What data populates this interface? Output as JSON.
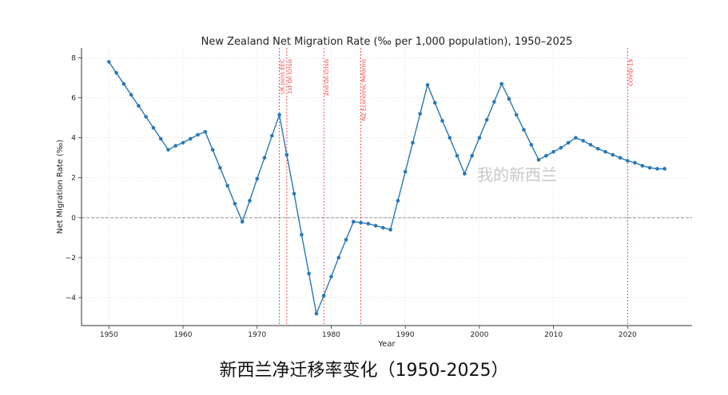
{
  "chart_data": {
    "type": "line",
    "title": "New Zealand Net Migration Rate (‰ per 1,000 population), 1950–2025",
    "xlabel": "Year",
    "ylabel": "Net Migration Rate (‰)",
    "xlim": [
      1946.3,
      2028.7
    ],
    "ylim": [
      -5.4,
      8.5
    ],
    "xticks": [
      1950,
      1960,
      1970,
      1980,
      1990,
      2000,
      2010,
      2020
    ],
    "yticks": [
      -4,
      -2,
      0,
      2,
      4,
      6,
      8
    ],
    "grid": true,
    "line_color": "#2878b8",
    "event_color": "#ff3b3b",
    "zero_line": true,
    "events": [
      {
        "year": 1973,
        "label": "UK joins EEC"
      },
      {
        "year": 1974,
        "label": "1st Oil Crisis"
      },
      {
        "year": 1979,
        "label": "2nd Oil Crisis"
      },
      {
        "year": 1984,
        "label": "NZ Economic Reforms"
      },
      {
        "year": 2020,
        "label": "COVID-19"
      }
    ],
    "x": [
      1950,
      1951,
      1952,
      1953,
      1954,
      1955,
      1956,
      1957,
      1958,
      1959,
      1960,
      1961,
      1962,
      1963,
      1964,
      1965,
      1966,
      1967,
      1968,
      1969,
      1970,
      1971,
      1972,
      1973,
      1974,
      1975,
      1976,
      1977,
      1978,
      1979,
      1980,
      1981,
      1982,
      1983,
      1984,
      1985,
      1986,
      1987,
      1988,
      1989,
      1990,
      1991,
      1992,
      1993,
      1994,
      1995,
      1996,
      1997,
      1998,
      1999,
      2000,
      2001,
      2002,
      2003,
      2004,
      2005,
      2006,
      2007,
      2008,
      2009,
      2010,
      2011,
      2012,
      2013,
      2014,
      2015,
      2016,
      2017,
      2018,
      2019,
      2020,
      2021,
      2022,
      2023,
      2024,
      2025
    ],
    "y": [
      7.8,
      7.25,
      6.7,
      6.15,
      5.6,
      5.05,
      4.5,
      3.95,
      3.4,
      3.6,
      3.75,
      3.95,
      4.15,
      4.3,
      3.4,
      2.5,
      1.6,
      0.7,
      -0.2,
      0.85,
      1.95,
      3.0,
      4.1,
      5.15,
      3.15,
      1.2,
      -0.85,
      -2.8,
      -4.8,
      -3.9,
      -2.95,
      -2.0,
      -1.1,
      -0.2,
      -0.25,
      -0.3,
      -0.4,
      -0.5,
      -0.6,
      0.85,
      2.3,
      3.75,
      5.2,
      6.65,
      5.75,
      4.85,
      4.0,
      3.1,
      2.2,
      3.1,
      4.0,
      4.9,
      5.8,
      6.7,
      5.95,
      5.15,
      4.4,
      3.65,
      2.9,
      3.1,
      3.3,
      3.5,
      3.75,
      4.0,
      3.85,
      3.65,
      3.45,
      3.3,
      3.15,
      3.0,
      2.85,
      2.75,
      2.6,
      2.5,
      2.45,
      2.45
    ]
  },
  "watermark": "我的新西兰",
  "caption": "新西兰净迁移率变化（1950-2025）"
}
